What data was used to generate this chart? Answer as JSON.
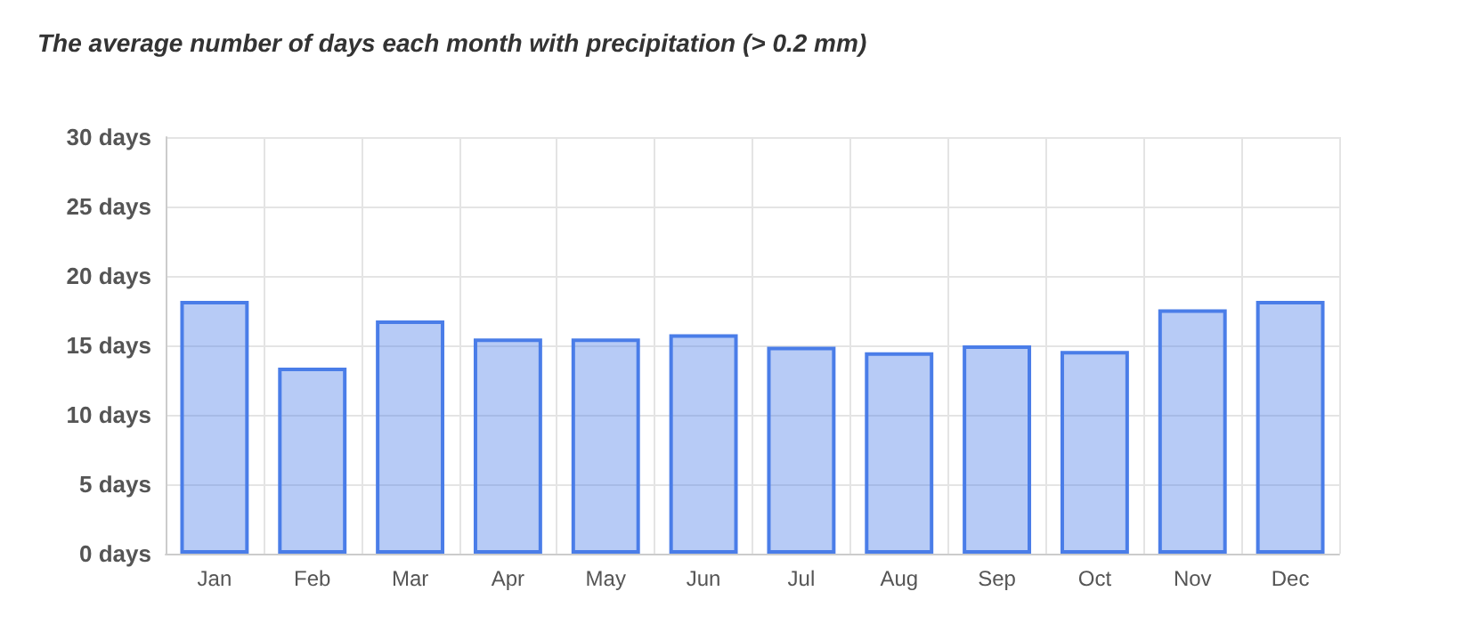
{
  "chart_data": {
    "type": "bar",
    "title": "The average number of days each month with precipitation (> 0.2 mm)",
    "categories": [
      "Jan",
      "Feb",
      "Mar",
      "Apr",
      "May",
      "Jun",
      "Jul",
      "Aug",
      "Sep",
      "Oct",
      "Nov",
      "Dec"
    ],
    "values": [
      18.2,
      13.4,
      16.8,
      15.5,
      15.5,
      15.8,
      14.9,
      14.5,
      15.0,
      14.6,
      17.6,
      18.2
    ],
    "color": "#4a7de8",
    "ylim": [
      0,
      30
    ],
    "yticks": [
      {
        "value": 0,
        "label": "0 days"
      },
      {
        "value": 5,
        "label": "5 days"
      },
      {
        "value": 10,
        "label": "10 days"
      },
      {
        "value": 15,
        "label": "15 days"
      },
      {
        "value": 20,
        "label": "20 days"
      },
      {
        "value": 25,
        "label": "25 days"
      },
      {
        "value": 30,
        "label": "30 days"
      }
    ],
    "grid": true
  }
}
